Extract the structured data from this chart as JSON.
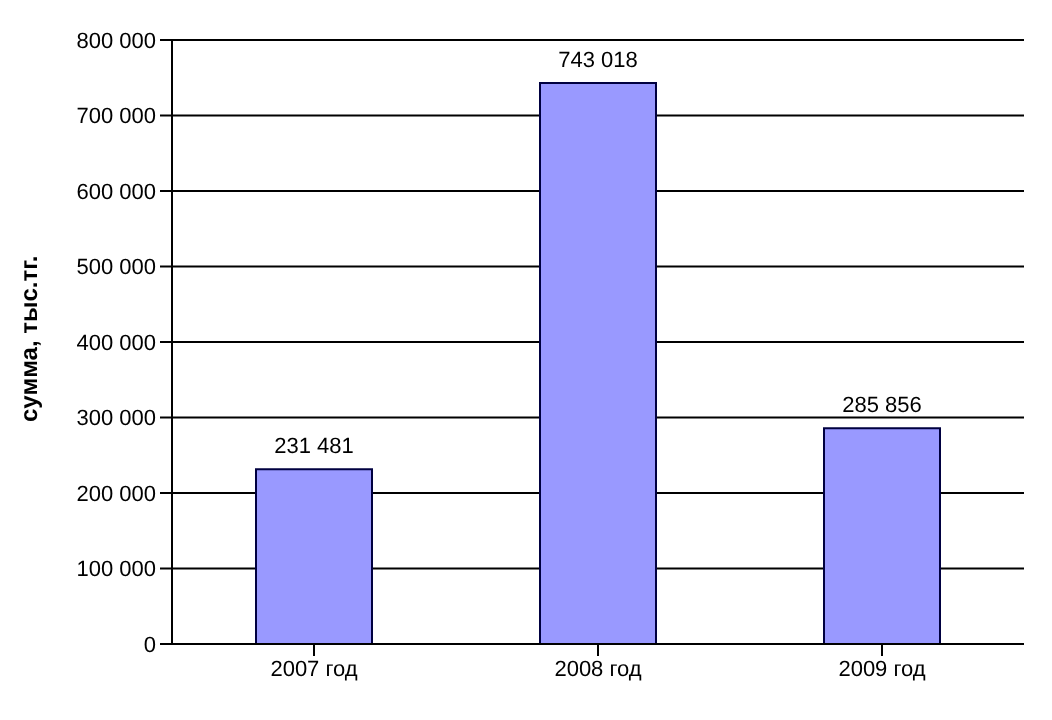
{
  "chart_data": {
    "type": "bar",
    "ylabel": "сумма, тыс.тг.",
    "categories": [
      "2007 год",
      "2008 год",
      "2009 год"
    ],
    "values": [
      231481,
      743018,
      285856
    ],
    "value_labels": [
      "231 481",
      "743 018",
      "285 856"
    ],
    "color": "#9999ff",
    "ylim": [
      0,
      800000
    ],
    "yticks": [
      {
        "value": 0,
        "label": "0"
      },
      {
        "value": 100000,
        "label": "100 000"
      },
      {
        "value": 200000,
        "label": "200 000"
      },
      {
        "value": 300000,
        "label": "300 000"
      },
      {
        "value": 400000,
        "label": "400 000"
      },
      {
        "value": 500000,
        "label": "500 000"
      },
      {
        "value": 600000,
        "label": "600 000"
      },
      {
        "value": 700000,
        "label": "700 000"
      },
      {
        "value": 800000,
        "label": "800 000"
      }
    ],
    "grid": "y",
    "legend": false
  }
}
